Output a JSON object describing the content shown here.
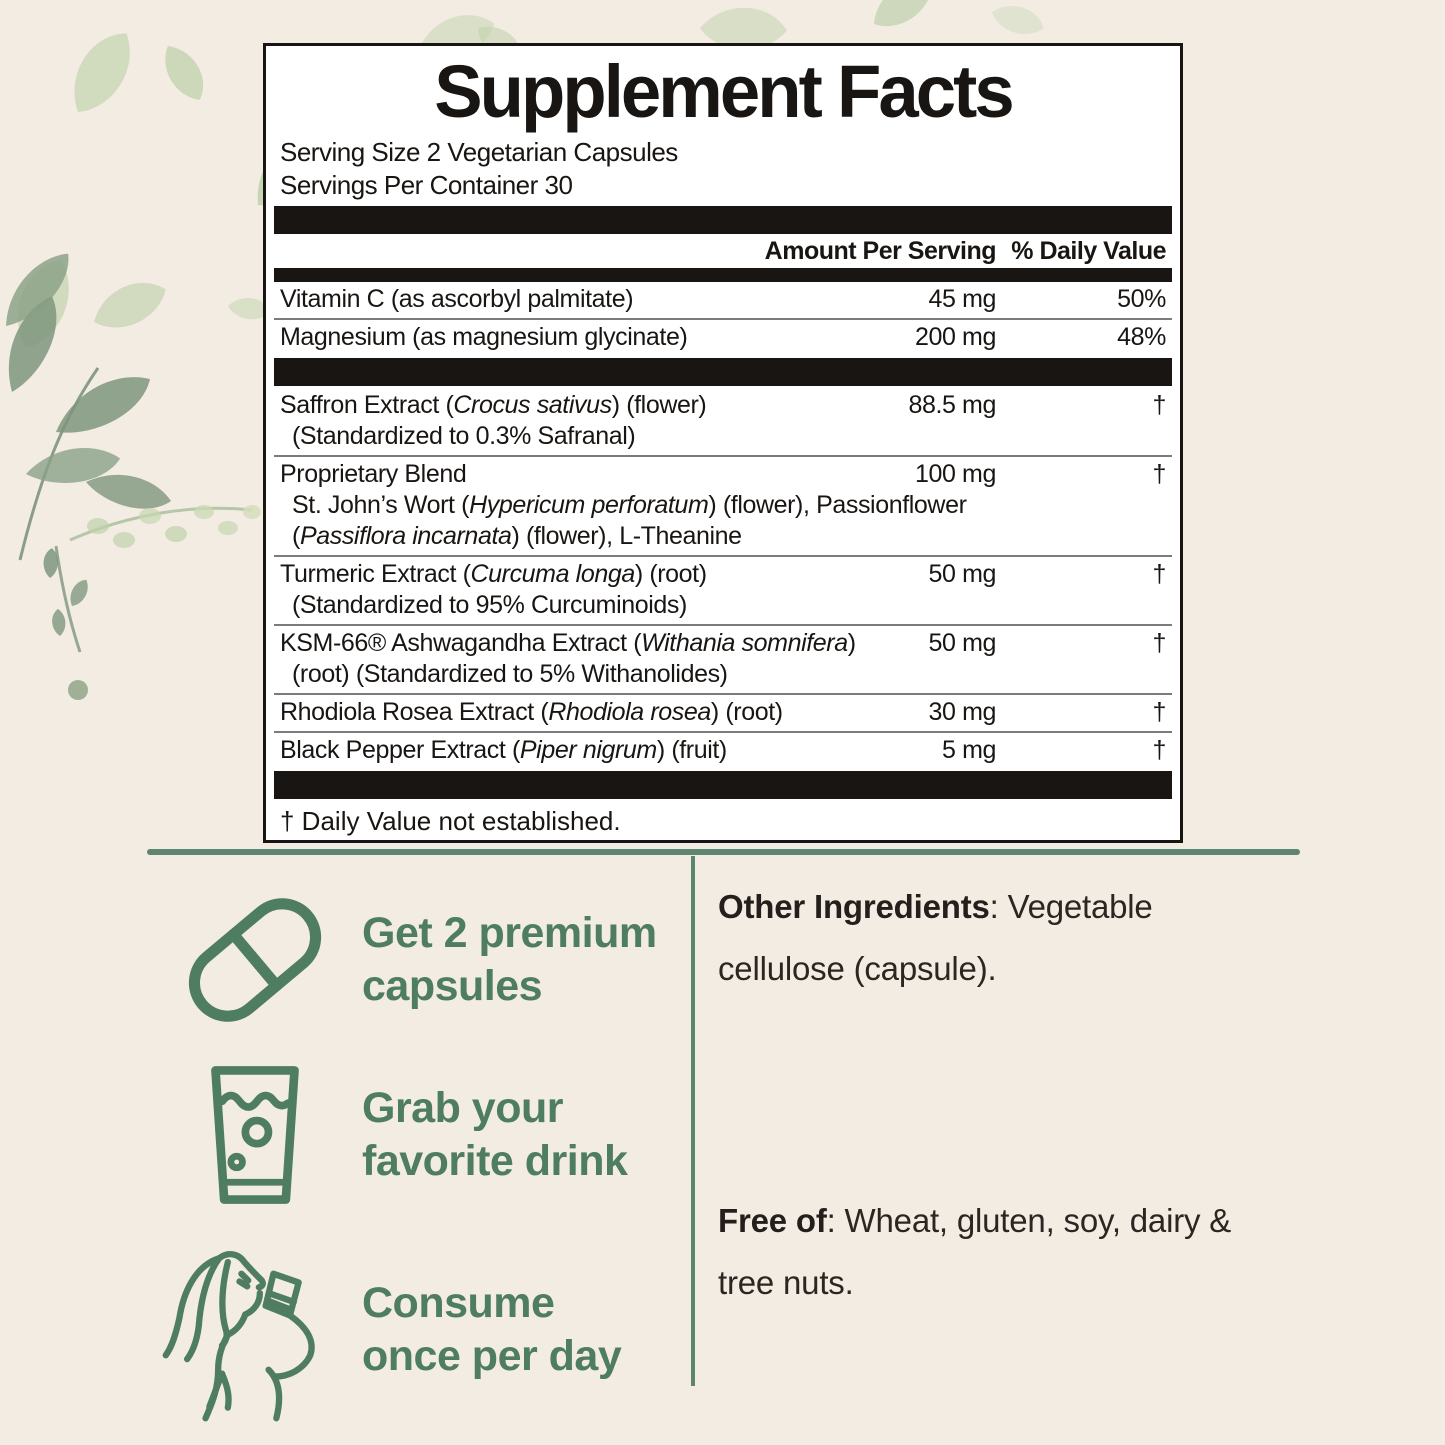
{
  "background_color": "#f3ece2",
  "accent_green": "#4e7d62",
  "divider_green": "#5d8570",
  "panel": {
    "title": "Supplement Facts",
    "serving_size": "Serving Size 2 Vegetarian Capsules",
    "servings_per_container": "Servings Per Container 30",
    "col_amount": "Amount Per Serving",
    "col_dv": "% Daily Value",
    "rows": [
      {
        "name": "Vitamin C (as ascorbyl palmitate)",
        "amount": "45 mg",
        "dv": "50%"
      },
      {
        "name": "Magnesium (as magnesium glycinate)",
        "amount": "200 mg",
        "dv": "48%"
      },
      {
        "type": "bar"
      },
      {
        "name": "Saffron Extract (*Crocus sativus*) (flower)",
        "sub": [
          "(Standardized to 0.3% Safranal)"
        ],
        "amount": "88.5 mg",
        "dv": "†"
      },
      {
        "name": "Proprietary Blend",
        "sub": [
          "St. John’s Wort (*Hypericum perforatum*) (flower), Passionflower",
          "(*Passiflora incarnata*) (flower), L-Theanine"
        ],
        "amount": "100 mg",
        "dv": "†"
      },
      {
        "name": "Turmeric Extract (*Curcuma longa*) (root)",
        "sub": [
          "(Standardized to 95% Curcuminoids)"
        ],
        "amount": "50 mg",
        "dv": "†"
      },
      {
        "name": "KSM-66® Ashwagandha Extract (*Withania somnifera*)",
        "sub": [
          "(root) (Standardized to 5% Withanolides)"
        ],
        "amount": "50 mg",
        "dv": "†"
      },
      {
        "name": "Rhodiola Rosea Extract (*Rhodiola rosea*) (root)",
        "amount": "30 mg",
        "dv": "†"
      },
      {
        "name": "Black Pepper Extract (*Piper nigrum*) (fruit)",
        "amount": "5 mg",
        "dv": "†"
      }
    ],
    "footnote": "† Daily Value not established."
  },
  "steps": [
    {
      "icon": "capsule-icon",
      "lines": [
        "Get 2 premium",
        "capsules"
      ]
    },
    {
      "icon": "drink-glass-icon",
      "lines": [
        "Grab your",
        "favorite drink"
      ]
    },
    {
      "icon": "woman-drinking-icon",
      "lines": [
        "Consume",
        "once per day"
      ]
    }
  ],
  "info": [
    {
      "lead": "Other Ingredients",
      "rest": ": Vegetable cellulose (capsule)."
    },
    {
      "lead": "Free of",
      "rest": ": Wheat, gluten, soy, dairy & tree nuts."
    }
  ]
}
